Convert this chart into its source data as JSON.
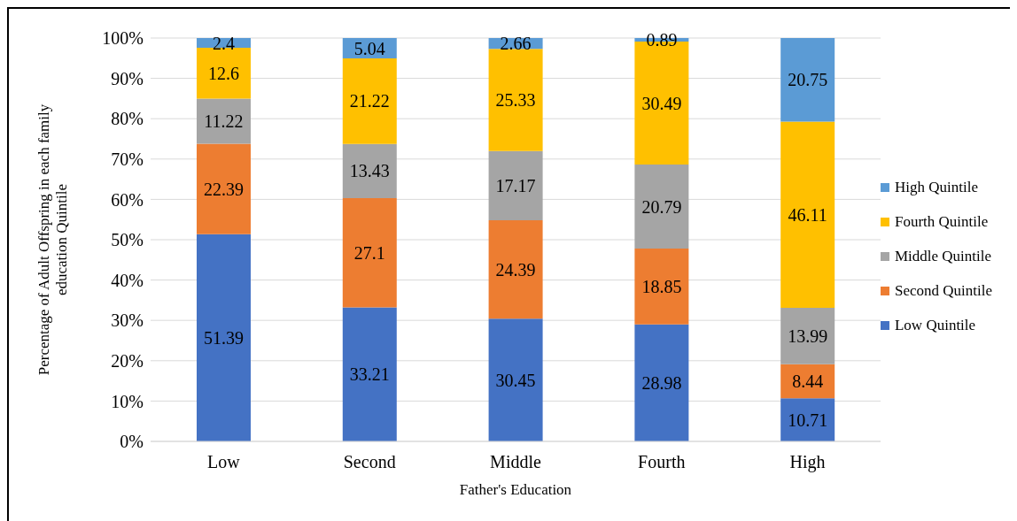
{
  "chart_data": {
    "type": "bar",
    "stacked": true,
    "xlabel": "Father's Education",
    "ylabel": "Percentage of Adult Offspring in each family education Quintile",
    "categories": [
      "Low",
      "Second",
      "Middle",
      "Fourth",
      "High"
    ],
    "series": [
      {
        "name": "Low Quintile",
        "color": "#4472c4",
        "values": [
          51.39,
          33.21,
          30.45,
          28.98,
          10.71
        ]
      },
      {
        "name": "Second Quintile",
        "color": "#ed7d31",
        "values": [
          22.39,
          27.1,
          24.39,
          18.85,
          8.44
        ]
      },
      {
        "name": "Middle Quintile",
        "color": "#a5a5a5",
        "values": [
          11.22,
          13.43,
          17.17,
          20.79,
          13.99
        ]
      },
      {
        "name": "Fourth Quintile",
        "color": "#ffc000",
        "values": [
          12.6,
          21.22,
          25.33,
          30.49,
          46.11
        ]
      },
      {
        "name": "High Quintile",
        "color": "#5b9bd5",
        "values": [
          2.4,
          5.04,
          2.66,
          0.89,
          20.75
        ]
      }
    ],
    "ylim": [
      0,
      100
    ],
    "yticks": [
      {
        "value": 0,
        "label": "0%"
      },
      {
        "value": 10,
        "label": "10%"
      },
      {
        "value": 20,
        "label": "20%"
      },
      {
        "value": 30,
        "label": "30%"
      },
      {
        "value": 40,
        "label": "40%"
      },
      {
        "value": 50,
        "label": "50%"
      },
      {
        "value": 60,
        "label": "60%"
      },
      {
        "value": 70,
        "label": "70%"
      },
      {
        "value": 80,
        "label": "80%"
      },
      {
        "value": 90,
        "label": "90%"
      },
      {
        "value": 100,
        "label": "100%"
      }
    ],
    "grid": "y",
    "legend": "right",
    "data_labels": true
  }
}
